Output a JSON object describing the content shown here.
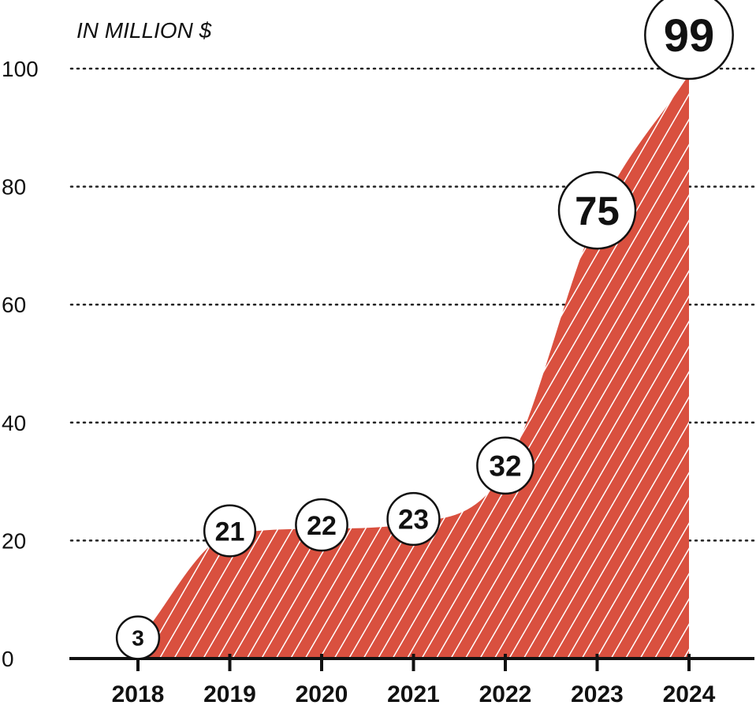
{
  "chart_data": {
    "type": "area",
    "title": "",
    "unit_label": "IN MILLION $",
    "xlabel": "",
    "ylabel": "",
    "categories": [
      "2018",
      "2019",
      "2020",
      "2021",
      "2022",
      "2023",
      "2024"
    ],
    "values": [
      3,
      21,
      22,
      23,
      32,
      75,
      99
    ],
    "ylim": [
      0,
      100
    ],
    "yticks": [
      "0",
      "20",
      "40",
      "60",
      "80",
      "100"
    ],
    "grid": true,
    "fill_color": "#d9503f",
    "hatch_color": "#ffffff"
  }
}
